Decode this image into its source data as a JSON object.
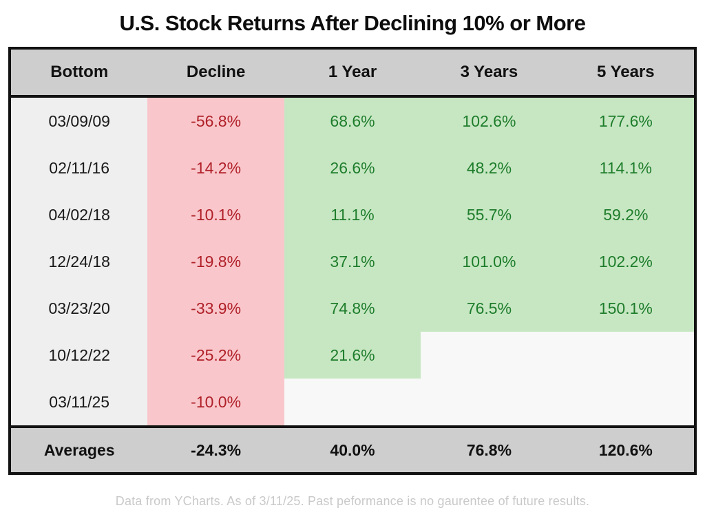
{
  "title": "U.S. Stock Returns After Declining 10% or More",
  "chart_data": {
    "type": "table",
    "title": "U.S. Stock Returns After Declining 10% or More",
    "columns": [
      "Bottom",
      "Decline",
      "1 Year",
      "3 Years",
      "5 Years"
    ],
    "rows": [
      {
        "bottom": "03/09/09",
        "decline": "-56.8%",
        "y1": "68.6%",
        "y3": "102.6%",
        "y5": "177.6%"
      },
      {
        "bottom": "02/11/16",
        "decline": "-14.2%",
        "y1": "26.6%",
        "y3": "48.2%",
        "y5": "114.1%"
      },
      {
        "bottom": "04/02/18",
        "decline": "-10.1%",
        "y1": "11.1%",
        "y3": "55.7%",
        "y5": "59.2%"
      },
      {
        "bottom": "12/24/18",
        "decline": "-19.8%",
        "y1": "37.1%",
        "y3": "101.0%",
        "y5": "102.2%"
      },
      {
        "bottom": "03/23/20",
        "decline": "-33.9%",
        "y1": "74.8%",
        "y3": "76.5%",
        "y5": "150.1%"
      },
      {
        "bottom": "10/12/22",
        "decline": "-25.2%",
        "y1": "21.6%",
        "y3": "",
        "y5": ""
      },
      {
        "bottom": "03/11/25",
        "decline": "-10.0%",
        "y1": "",
        "y3": "",
        "y5": ""
      }
    ],
    "averages": {
      "label": "Averages",
      "decline": "-24.3%",
      "y1": "40.0%",
      "y3": "76.8%",
      "y5": "120.6%"
    }
  },
  "footnote": "Data from YCharts. As of 3/11/25. Past peformance is no gaurentee of future results.",
  "colors": {
    "header_gray": "#cecece",
    "date_column_gray": "#efefef",
    "decline_pink": "#f9c7cb",
    "return_green": "#c7e7c3",
    "blank_cell": "#f8f8f8",
    "decline_text_red": "#b01f28",
    "return_text_green": "#1e7d2b",
    "border_black": "#121212",
    "footnote_gray": "#c9c9c9"
  }
}
